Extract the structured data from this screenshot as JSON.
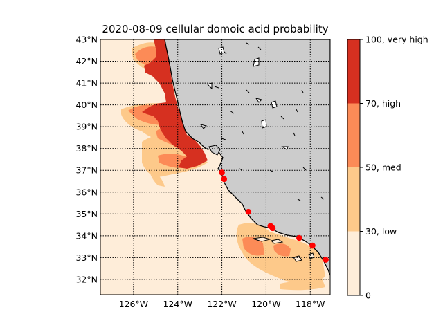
{
  "title": "2020-08-09 cellular domoic acid probability",
  "map": {
    "lat_range": [
      31.3,
      43
    ],
    "lon_range": [
      -127.5,
      -117.1
    ],
    "lat_ticks": [
      "32°N",
      "33°N",
      "34°N",
      "35°N",
      "36°N",
      "37°N",
      "38°N",
      "39°N",
      "40°N",
      "41°N",
      "42°N",
      "43°N"
    ],
    "lon_ticks": [
      "126°W",
      "124°W",
      "122°W",
      "120°W",
      "118°W"
    ],
    "land_color": "#cccccc",
    "grid": "dotted"
  },
  "colorbar": {
    "levels": [
      {
        "label": "0",
        "color": "#feedd9"
      },
      {
        "label": "30, low",
        "color": "#fdc98a"
      },
      {
        "label": "50, med",
        "color": "#fc8b57"
      },
      {
        "label": "70, high",
        "color": "#d63020"
      }
    ],
    "top_label": "100, very high"
  },
  "stations": [
    {
      "lon": -122.0,
      "lat": 36.9
    },
    {
      "lon": -121.9,
      "lat": 36.6
    },
    {
      "lon": -120.8,
      "lat": 35.1
    },
    {
      "lon": -119.8,
      "lat": 34.45
    },
    {
      "lon": -119.7,
      "lat": 34.35
    },
    {
      "lon": -118.5,
      "lat": 33.9
    },
    {
      "lon": -117.9,
      "lat": 33.55
    },
    {
      "lon": -117.3,
      "lat": 32.9
    }
  ],
  "station_color": "#ff0000"
}
